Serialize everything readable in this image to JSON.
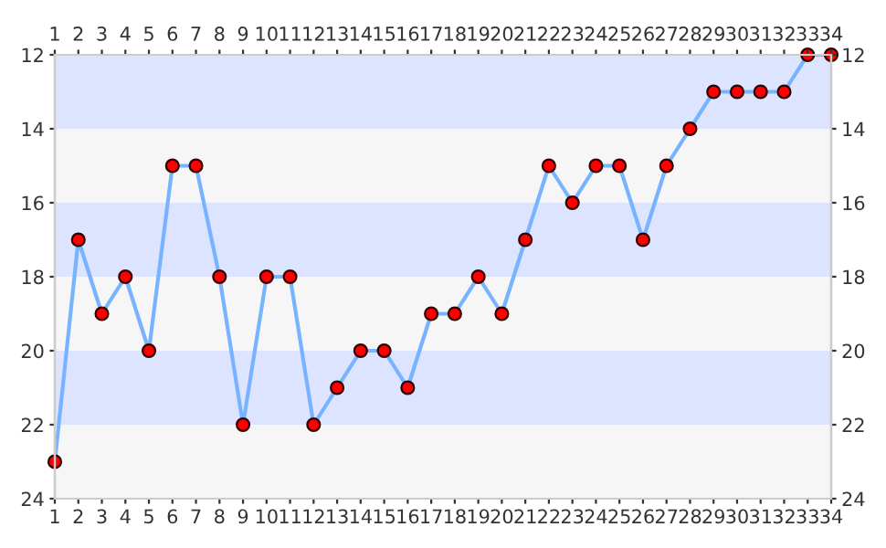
{
  "chart_data": {
    "type": "line",
    "x": [
      1,
      2,
      3,
      4,
      5,
      6,
      7,
      8,
      9,
      10,
      11,
      12,
      13,
      14,
      15,
      16,
      17,
      18,
      19,
      20,
      21,
      22,
      23,
      24,
      25,
      26,
      27,
      28,
      29,
      30,
      31,
      32,
      33,
      34
    ],
    "series": [
      {
        "color": "#77b3ff",
        "values": [
          23,
          17,
          19,
          18,
          20,
          15,
          15,
          18,
          22,
          18,
          18,
          22,
          21,
          20,
          20,
          21,
          19,
          19,
          18,
          19,
          17,
          15,
          16,
          15,
          15,
          17,
          15,
          14,
          13,
          13,
          13,
          13,
          12,
          12
        ]
      }
    ],
    "marker": "circle",
    "line_style": "solid",
    "grid": false,
    "legend": false,
    "xlim": [
      1,
      34
    ],
    "xticks": [
      1,
      2,
      3,
      4,
      5,
      6,
      7,
      8,
      9,
      10,
      11,
      12,
      13,
      14,
      15,
      16,
      17,
      18,
      19,
      20,
      21,
      22,
      23,
      24,
      25,
      26,
      27,
      28,
      29,
      30,
      31,
      32,
      33,
      34
    ],
    "x2lim": [
      1,
      34
    ],
    "x2ticks": [
      1,
      2,
      3,
      4,
      5,
      6,
      7,
      8,
      9,
      10,
      11,
      12,
      13,
      14,
      15,
      16,
      17,
      18,
      19,
      20,
      21,
      22,
      23,
      24,
      25,
      26,
      27,
      28,
      29,
      30,
      31,
      32,
      33,
      34
    ],
    "ylim": [
      24,
      12
    ],
    "yticks": [
      12,
      14,
      16,
      18,
      20,
      22,
      24
    ],
    "y2lim": [
      24,
      12
    ],
    "y2ticks": [
      12,
      14,
      16,
      18,
      20,
      22,
      24
    ],
    "bands": [
      {
        "axis": "y",
        "from": 12,
        "to": 14,
        "color": "#dde4ff"
      },
      {
        "axis": "y",
        "from": 14,
        "to": 16,
        "color": "#f6f6f6"
      },
      {
        "axis": "y",
        "from": 16,
        "to": 18,
        "color": "#dde4ff"
      },
      {
        "axis": "y",
        "from": 18,
        "to": 20,
        "color": "#f6f6f6"
      },
      {
        "axis": "y",
        "from": 20,
        "to": 22,
        "color": "#dde4ff"
      },
      {
        "axis": "y",
        "from": 22,
        "to": 24,
        "color": "#f6f6f6"
      }
    ]
  }
}
